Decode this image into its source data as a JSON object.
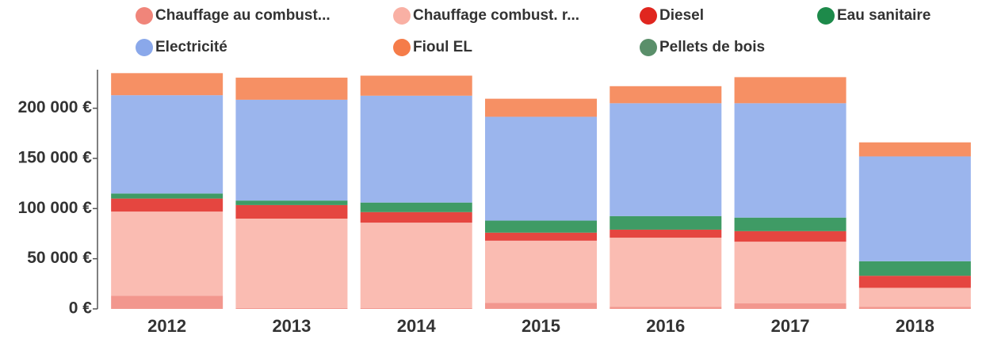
{
  "chart_data": {
    "type": "stacked_bar",
    "categories": [
      "2012",
      "2013",
      "2014",
      "2015",
      "2016",
      "2017",
      "2018"
    ],
    "series": [
      {
        "name": "Chauffage au combust...",
        "color": "#f0857a",
        "values": [
          13000,
          1000,
          1000,
          6000,
          2000,
          5500,
          2000
        ]
      },
      {
        "name": "Chauffage combust. r...",
        "color": "#f9b0a4",
        "values": [
          84000,
          89000,
          85000,
          62000,
          69000,
          61500,
          19000
        ]
      },
      {
        "name": "Diesel",
        "color": "#e0261f",
        "values": [
          13000,
          13500,
          10500,
          8000,
          8000,
          10500,
          12000
        ]
      },
      {
        "name": "Eau sanitaire",
        "color": "#1d8a4a",
        "values": [
          5000,
          4500,
          9500,
          12000,
          13500,
          13500,
          14500
        ]
      },
      {
        "name": "Electricité",
        "color": "#8aa8ea",
        "values": [
          98000,
          100500,
          106500,
          103500,
          112500,
          114000,
          104500
        ]
      },
      {
        "name": "Fioul EL",
        "color": "#f57c49",
        "values": [
          22000,
          22000,
          20000,
          18000,
          17000,
          26000,
          14000
        ]
      },
      {
        "name": "Pellets de bois",
        "color": "#5a8f6a",
        "values": [
          0,
          0,
          0,
          0,
          0,
          0,
          0
        ]
      }
    ],
    "stack_order": [
      "Chauffage au combust...",
      "Chauffage combust. r...",
      "Diesel",
      "Eau sanitaire",
      "Pellets de bois",
      "Electricité",
      "Fioul EL"
    ],
    "ylim": [
      0,
      240000
    ],
    "yticks": [
      {
        "value": 0,
        "label": "0 €"
      },
      {
        "value": 50000,
        "label": "50 000 €"
      },
      {
        "value": 100000,
        "label": "100 000 €"
      },
      {
        "value": 150000,
        "label": "150 000 €"
      },
      {
        "value": 200000,
        "label": "200 000 €"
      }
    ],
    "legend": "top"
  }
}
